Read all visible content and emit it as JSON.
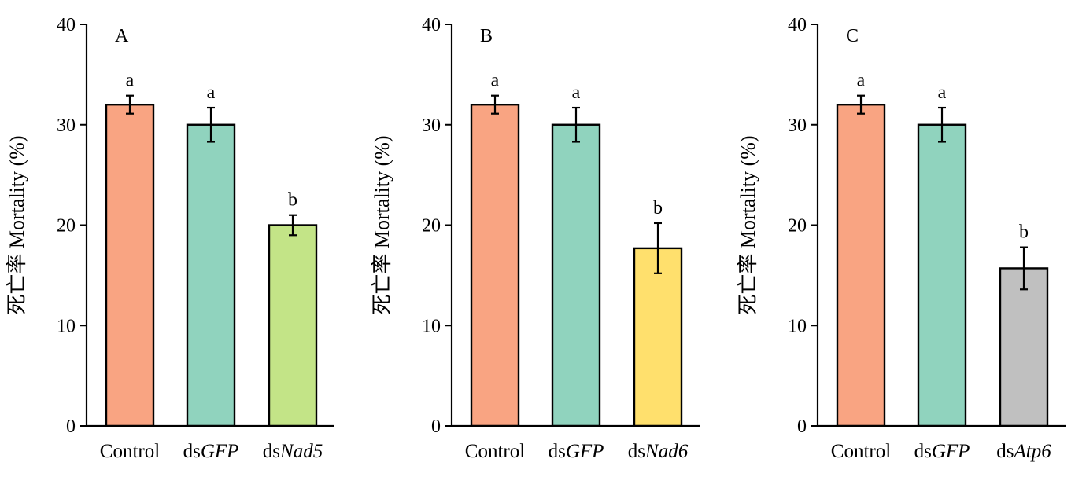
{
  "chart_data": [
    {
      "type": "bar",
      "panel_label": "A",
      "ylabel": "死亡率 Mortality (%)",
      "ylim": [
        0,
        40
      ],
      "yticks": [
        0,
        10,
        20,
        30,
        40
      ],
      "categories": [
        {
          "prefix": "Control",
          "italic": ""
        },
        {
          "prefix": "ds",
          "italic": "GFP"
        },
        {
          "prefix": "ds",
          "italic": "Nad5"
        }
      ],
      "values": [
        32.0,
        30.0,
        20.0
      ],
      "errors": [
        0.9,
        1.7,
        1.0
      ],
      "significance": [
        "a",
        "a",
        "b"
      ],
      "colors": [
        "#F9A482",
        "#90D3BE",
        "#C3E487"
      ]
    },
    {
      "type": "bar",
      "panel_label": "B",
      "ylabel": "死亡率 Mortality (%)",
      "ylim": [
        0,
        40
      ],
      "yticks": [
        0,
        10,
        20,
        30,
        40
      ],
      "categories": [
        {
          "prefix": "Control",
          "italic": ""
        },
        {
          "prefix": "ds",
          "italic": "GFP"
        },
        {
          "prefix": "ds",
          "italic": "Nad6"
        }
      ],
      "values": [
        32.0,
        30.0,
        17.7
      ],
      "errors": [
        0.9,
        1.7,
        2.5
      ],
      "significance": [
        "a",
        "a",
        "b"
      ],
      "colors": [
        "#F9A482",
        "#90D3BE",
        "#FFE06D"
      ]
    },
    {
      "type": "bar",
      "panel_label": "C",
      "ylabel": "死亡率 Mortality (%)",
      "ylim": [
        0,
        40
      ],
      "yticks": [
        0,
        10,
        20,
        30,
        40
      ],
      "categories": [
        {
          "prefix": "Control",
          "italic": ""
        },
        {
          "prefix": "ds",
          "italic": "GFP"
        },
        {
          "prefix": "ds",
          "italic": "Atp6"
        }
      ],
      "values": [
        32.0,
        30.0,
        15.7
      ],
      "errors": [
        0.9,
        1.7,
        2.1
      ],
      "significance": [
        "a",
        "a",
        "b"
      ],
      "colors": [
        "#F9A482",
        "#90D3BE",
        "#C0C0C0"
      ]
    }
  ]
}
